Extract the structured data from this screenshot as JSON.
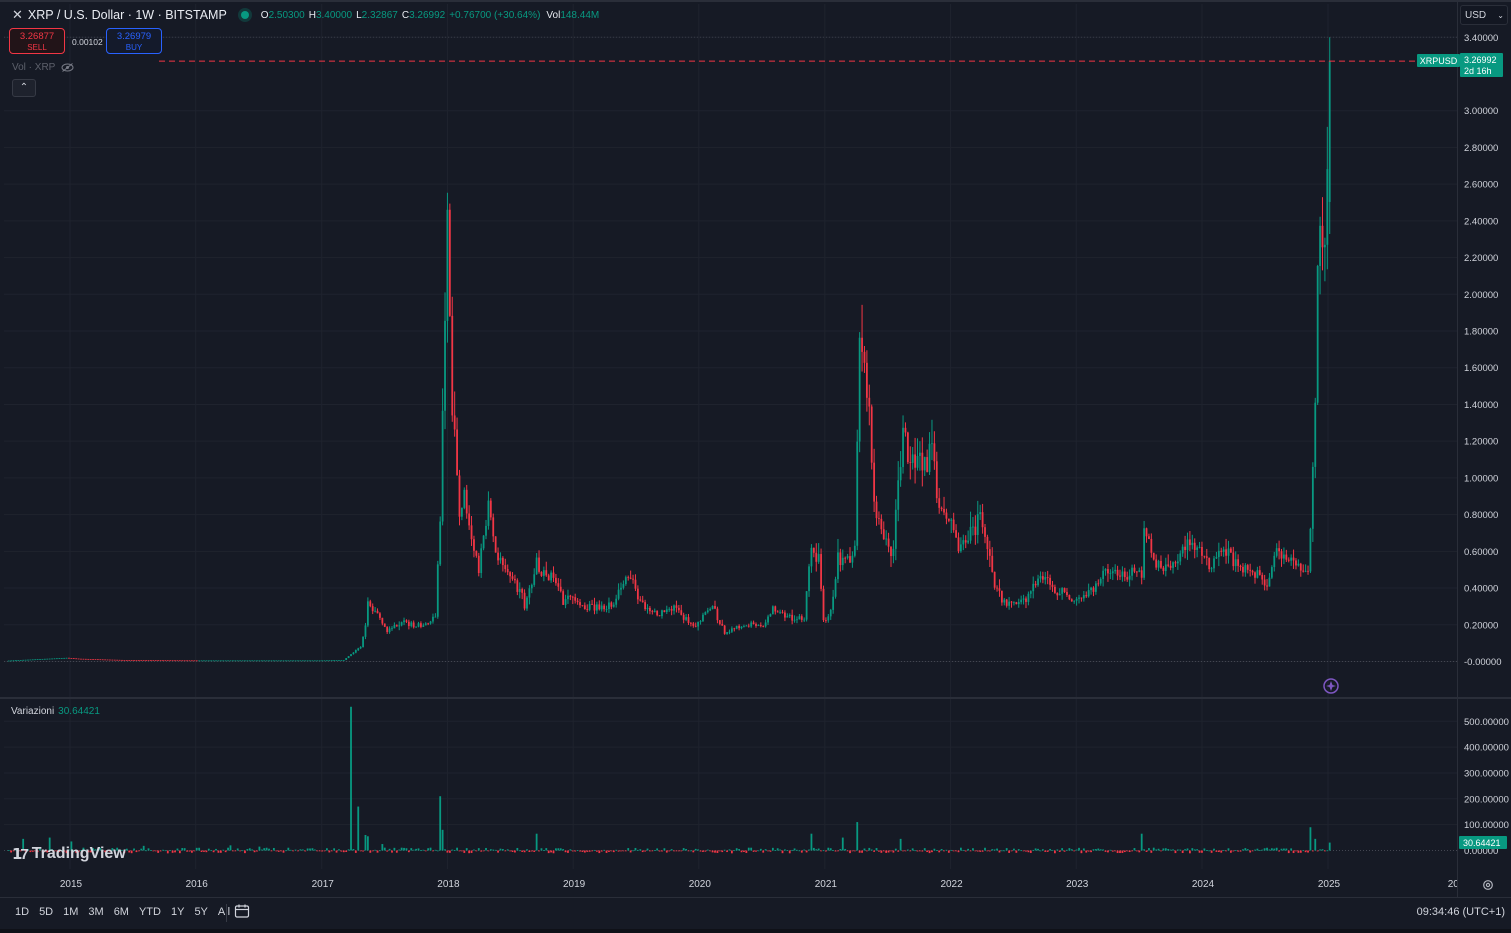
{
  "header": {
    "symbol": "XRP / U.S. Dollar · 1W · BITSTAMP",
    "open_label": "O",
    "open_value": "2.50300",
    "high_label": "H",
    "high_value": "3.40000",
    "low_label": "L",
    "low_value": "2.32867",
    "close_label": "C",
    "close_value": "3.26992",
    "change_value": "+0.76700 (+30.64%)",
    "vol_label": "Vol",
    "vol_value": "148.44M"
  },
  "trade": {
    "sell_price": "3.26877",
    "sell_label": "SELL",
    "spread": "0.00102",
    "buy_price": "3.26979",
    "buy_label": "BUY"
  },
  "vol_indicator_label": "Vol · XRP",
  "currency_selector": "USD",
  "price_tag": {
    "symbol": "XRPUSD",
    "price": "3.26992",
    "countdown": "2d 16h"
  },
  "sub_indicator": {
    "name": "Variazioni",
    "value": "30.64421"
  },
  "time_ranges": [
    "1D",
    "5D",
    "1M",
    "3M",
    "6M",
    "YTD",
    "1Y",
    "5Y",
    "All"
  ],
  "clock": "09:34:46 (UTC+1)",
  "logo_text": "TradingView",
  "colors": {
    "up": "#089981",
    "down": "#f23645",
    "background": "#161a25",
    "grid": "#1f232e",
    "text": "#d1d4dc",
    "accent_purple": "#7e57c2"
  },
  "chart_data": [
    {
      "type": "candlestick",
      "series_name": "XRPUSD",
      "interval": "1W",
      "x_axis": {
        "type": "date",
        "tick_labels": [
          "2015",
          "2016",
          "2017",
          "2018",
          "2019",
          "2020",
          "2021",
          "2022",
          "2023",
          "2024",
          "2025",
          "202"
        ]
      },
      "y_axis": {
        "ylim": [
          -0.08,
          3.42
        ],
        "tick_labels": [
          "3.40000",
          "3.00000",
          "2.80000",
          "2.60000",
          "2.40000",
          "2.20000",
          "2.00000",
          "1.80000",
          "1.60000",
          "1.40000",
          "1.20000",
          "1.00000",
          "0.80000",
          "0.60000",
          "0.40000",
          "0.20000",
          "-0.00000"
        ],
        "ticks": [
          3.4,
          3.0,
          2.8,
          2.6,
          2.4,
          2.2,
          2.0,
          1.8,
          1.6,
          1.4,
          1.2,
          1.0,
          0.8,
          0.6,
          0.4,
          0.2,
          0.0
        ]
      },
      "last_price_line": 3.26992,
      "grid": true,
      "price_path": [
        [
          "2014-07-07",
          0.005
        ],
        [
          "2014-12-22",
          0.02
        ],
        [
          "2015-01-26",
          0.015
        ],
        [
          "2015-06-01",
          0.008
        ],
        [
          "2016-01-04",
          0.006
        ],
        [
          "2016-06-06",
          0.006
        ],
        [
          "2017-01-02",
          0.006
        ],
        [
          "2017-03-06",
          0.008
        ],
        [
          "2017-03-27",
          0.04
        ],
        [
          "2017-04-24",
          0.08
        ],
        [
          "2017-05-08",
          0.2
        ],
        [
          "2017-05-15",
          0.31
        ],
        [
          "2017-05-22",
          0.29
        ],
        [
          "2017-06-12",
          0.26
        ],
        [
          "2017-07-10",
          0.17
        ],
        [
          "2017-08-07",
          0.2
        ],
        [
          "2017-09-04",
          0.22
        ],
        [
          "2017-10-02",
          0.19
        ],
        [
          "2017-11-06",
          0.21
        ],
        [
          "2017-11-27",
          0.25
        ],
        [
          "2017-12-11",
          0.78
        ],
        [
          "2017-12-25",
          1.9
        ],
        [
          "2018-01-01",
          2.3
        ],
        [
          "2018-01-08",
          2.0
        ],
        [
          "2018-01-15",
          1.3
        ],
        [
          "2018-01-22",
          1.2
        ],
        [
          "2018-02-05",
          0.8
        ],
        [
          "2018-02-19",
          0.95
        ],
        [
          "2018-03-12",
          0.65
        ],
        [
          "2018-04-02",
          0.5
        ],
        [
          "2018-04-30",
          0.85
        ],
        [
          "2018-05-21",
          0.6
        ],
        [
          "2018-06-18",
          0.5
        ],
        [
          "2018-08-06",
          0.35
        ],
        [
          "2018-08-13",
          0.28
        ],
        [
          "2018-09-17",
          0.55
        ],
        [
          "2018-09-24",
          0.5
        ],
        [
          "2018-10-29",
          0.45
        ],
        [
          "2018-11-19",
          0.42
        ],
        [
          "2018-12-03",
          0.3
        ],
        [
          "2018-12-24",
          0.37
        ],
        [
          "2019-02-04",
          0.3
        ],
        [
          "2019-03-25",
          0.3
        ],
        [
          "2019-04-29",
          0.3
        ],
        [
          "2019-05-20",
          0.42
        ],
        [
          "2019-06-24",
          0.45
        ],
        [
          "2019-07-15",
          0.32
        ],
        [
          "2019-09-02",
          0.26
        ],
        [
          "2019-10-21",
          0.29
        ],
        [
          "2019-12-16",
          0.19
        ],
        [
          "2020-02-10",
          0.3
        ],
        [
          "2020-03-16",
          0.15
        ],
        [
          "2020-05-04",
          0.2
        ],
        [
          "2020-07-06",
          0.19
        ],
        [
          "2020-08-03",
          0.3
        ],
        [
          "2020-09-14",
          0.24
        ],
        [
          "2020-11-02",
          0.24
        ],
        [
          "2020-11-23",
          0.6
        ],
        [
          "2020-12-14",
          0.55
        ],
        [
          "2020-12-28",
          0.22
        ],
        [
          "2021-01-18",
          0.28
        ],
        [
          "2021-02-08",
          0.55
        ],
        [
          "2021-03-29",
          0.6
        ],
        [
          "2021-04-12",
          1.7
        ],
        [
          "2021-05-03",
          1.5
        ],
        [
          "2021-05-24",
          0.9
        ],
        [
          "2021-06-28",
          0.62
        ],
        [
          "2021-07-19",
          0.6
        ],
        [
          "2021-08-16",
          1.25
        ],
        [
          "2021-09-06",
          1.1
        ],
        [
          "2021-10-25",
          1.1
        ],
        [
          "2021-11-08",
          1.2
        ],
        [
          "2021-11-29",
          0.85
        ],
        [
          "2022-01-03",
          0.75
        ],
        [
          "2022-01-24",
          0.6
        ],
        [
          "2022-03-28",
          0.8
        ],
        [
          "2022-04-25",
          0.6
        ],
        [
          "2022-05-09",
          0.4
        ],
        [
          "2022-06-13",
          0.31
        ],
        [
          "2022-08-15",
          0.35
        ],
        [
          "2022-09-19",
          0.48
        ],
        [
          "2022-11-07",
          0.38
        ],
        [
          "2022-12-26",
          0.34
        ],
        [
          "2023-02-13",
          0.38
        ],
        [
          "2023-04-03",
          0.5
        ],
        [
          "2023-05-22",
          0.47
        ],
        [
          "2023-07-10",
          0.48
        ],
        [
          "2023-07-17",
          0.72
        ],
        [
          "2023-08-21",
          0.52
        ],
        [
          "2023-10-02",
          0.5
        ],
        [
          "2023-11-13",
          0.62
        ],
        [
          "2023-12-25",
          0.6
        ],
        [
          "2024-01-22",
          0.52
        ],
        [
          "2024-03-11",
          0.62
        ],
        [
          "2024-04-15",
          0.5
        ],
        [
          "2024-06-03",
          0.48
        ],
        [
          "2024-07-08",
          0.42
        ],
        [
          "2024-07-29",
          0.6
        ],
        [
          "2024-09-02",
          0.56
        ],
        [
          "2024-11-04",
          0.5
        ],
        [
          "2024-11-11",
          0.73
        ],
        [
          "2024-11-18",
          1.1
        ],
        [
          "2024-11-25",
          1.4
        ],
        [
          "2024-12-02",
          2.25
        ],
        [
          "2024-12-09",
          2.35
        ],
        [
          "2024-12-23",
          2.18
        ],
        [
          "2024-12-30",
          2.5
        ],
        [
          "2025-01-06",
          3.27
        ]
      ]
    },
    {
      "type": "bar",
      "series_name": "Variazioni",
      "y_axis": {
        "tick_labels": [
          "500.00000",
          "400.00000",
          "300.00000",
          "200.00000",
          "100.00000",
          "0.00000"
        ],
        "ticks": [
          500,
          400,
          300,
          200,
          100,
          0
        ]
      },
      "last_value": 30.64421,
      "spikes": [
        [
          "2014-08-18",
          45
        ],
        [
          "2014-11-03",
          50
        ],
        [
          "2015-01-05",
          35
        ],
        [
          "2015-08-03",
          18
        ],
        [
          "2016-04-11",
          20
        ],
        [
          "2016-07-04",
          15
        ],
        [
          "2017-03-27",
          556
        ],
        [
          "2017-04-17",
          170
        ],
        [
          "2017-05-08",
          60
        ],
        [
          "2017-05-15",
          55
        ],
        [
          "2017-06-26",
          25
        ],
        [
          "2017-12-11",
          210
        ],
        [
          "2017-12-18",
          80
        ],
        [
          "2018-09-17",
          65
        ],
        [
          "2020-11-23",
          65
        ],
        [
          "2021-02-22",
          50
        ],
        [
          "2021-04-05",
          110
        ],
        [
          "2021-08-09",
          45
        ],
        [
          "2023-07-10",
          65
        ],
        [
          "2024-11-11",
          90
        ],
        [
          "2024-11-25",
          45
        ],
        [
          "2025-01-06",
          30.6
        ]
      ]
    }
  ]
}
